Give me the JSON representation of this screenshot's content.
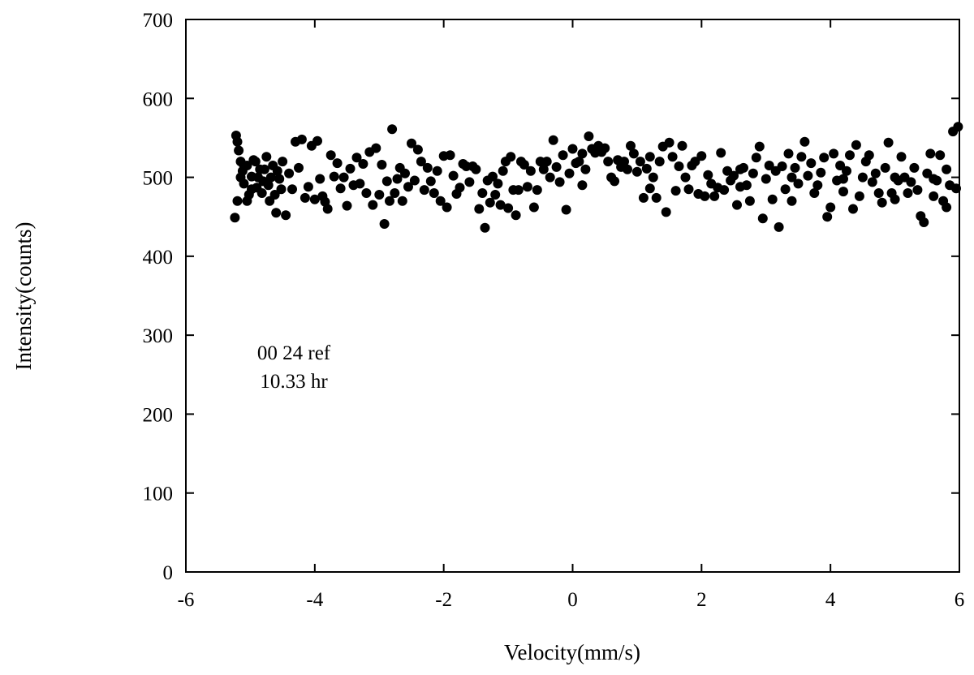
{
  "chart_data": {
    "type": "scatter",
    "title": "",
    "xlabel": "Velocity(mm/s)",
    "ylabel": "Intensity(counts)",
    "xlim": [
      -6,
      6
    ],
    "ylim": [
      0,
      700
    ],
    "x_ticks": [
      -6,
      -4,
      -2,
      0,
      2,
      4,
      6
    ],
    "y_ticks": [
      0,
      100,
      200,
      300,
      400,
      500,
      600,
      700
    ],
    "x_tick_labels": [
      "-6",
      "-4",
      "-2",
      "0",
      "2",
      "4",
      "6"
    ],
    "y_tick_labels": [
      "0",
      "100",
      "200",
      "300",
      "400",
      "500",
      "600",
      "700"
    ],
    "grid": false,
    "legend": "none",
    "marker_color": "#000000",
    "annotations": [
      "00 24 ref",
      "10.33 hr"
    ],
    "series": [
      {
        "values": [
          [
            -5.24,
            449
          ],
          [
            -5.22,
            553
          ],
          [
            -5.2,
            545
          ],
          [
            -5.18,
            534
          ],
          [
            -5.15,
            520
          ],
          [
            -5.12,
            508
          ],
          [
            -5.1,
            492
          ],
          [
            -5.05,
            515
          ],
          [
            -5.02,
            478
          ],
          [
            -4.98,
            501
          ],
          [
            -4.95,
            522
          ],
          [
            -4.9,
            487
          ],
          [
            -4.85,
            510
          ],
          [
            -4.8,
            495
          ],
          [
            -4.75,
            526
          ],
          [
            -4.7,
            470
          ],
          [
            -4.65,
            515
          ],
          [
            -4.6,
            455
          ],
          [
            -4.55,
            498
          ],
          [
            -4.5,
            520
          ],
          [
            -4.45,
            452
          ],
          [
            -4.4,
            505
          ],
          [
            -4.35,
            485
          ],
          [
            -4.3,
            545
          ],
          [
            -4.25,
            512
          ],
          [
            -4.2,
            548
          ],
          [
            -4.15,
            474
          ],
          [
            -4.1,
            488
          ],
          [
            -4.05,
            540
          ],
          [
            -4.0,
            472
          ],
          [
            -3.96,
            546
          ],
          [
            -3.92,
            498
          ],
          [
            -3.88,
            476
          ],
          [
            -3.84,
            469
          ],
          [
            -3.8,
            460
          ],
          [
            -3.75,
            528
          ],
          [
            -3.7,
            501
          ],
          [
            -3.65,
            518
          ],
          [
            -3.6,
            486
          ],
          [
            -3.55,
            500
          ],
          [
            -3.5,
            464
          ],
          [
            -3.45,
            511
          ],
          [
            -3.4,
            490
          ],
          [
            -3.35,
            525
          ],
          [
            -3.3,
            492
          ],
          [
            -3.25,
            517
          ],
          [
            -3.2,
            480
          ],
          [
            -3.15,
            532
          ],
          [
            -3.1,
            465
          ],
          [
            -3.05,
            537
          ],
          [
            -3.0,
            478
          ],
          [
            -2.96,
            516
          ],
          [
            -2.92,
            441
          ],
          [
            -2.88,
            495
          ],
          [
            -2.84,
            470
          ],
          [
            -2.8,
            561
          ],
          [
            -2.76,
            480
          ],
          [
            -2.72,
            498
          ],
          [
            -2.68,
            512
          ],
          [
            -2.64,
            470
          ],
          [
            -2.6,
            505
          ],
          [
            -2.55,
            488
          ],
          [
            -2.5,
            543
          ],
          [
            -2.45,
            496
          ],
          [
            -2.4,
            535
          ],
          [
            -2.35,
            520
          ],
          [
            -2.3,
            484
          ],
          [
            -2.25,
            512
          ],
          [
            -2.2,
            495
          ],
          [
            -2.15,
            480
          ],
          [
            -2.1,
            508
          ],
          [
            -2.05,
            470
          ],
          [
            -2.0,
            527
          ],
          [
            -1.95,
            462
          ],
          [
            -1.9,
            528
          ],
          [
            -1.85,
            502
          ],
          [
            -1.8,
            479
          ],
          [
            -1.75,
            487
          ],
          [
            -1.7,
            517
          ],
          [
            -1.65,
            514
          ],
          [
            -1.6,
            494
          ],
          [
            -1.55,
            514
          ],
          [
            -1.5,
            510
          ],
          [
            -1.45,
            460
          ],
          [
            -1.4,
            480
          ],
          [
            -1.36,
            436
          ],
          [
            -1.32,
            496
          ],
          [
            -1.28,
            468
          ],
          [
            -1.24,
            501
          ],
          [
            -1.2,
            478
          ],
          [
            -1.16,
            492
          ],
          [
            -1.12,
            465
          ],
          [
            -1.08,
            508
          ],
          [
            -1.04,
            520
          ],
          [
            -1.0,
            461
          ],
          [
            -0.96,
            526
          ],
          [
            -0.92,
            484
          ],
          [
            -0.88,
            452
          ],
          [
            -0.84,
            484
          ],
          [
            -0.8,
            520
          ],
          [
            -0.75,
            516
          ],
          [
            -0.7,
            488
          ],
          [
            -0.65,
            508
          ],
          [
            -0.6,
            462
          ],
          [
            -0.55,
            484
          ],
          [
            -0.5,
            520
          ],
          [
            -0.45,
            510
          ],
          [
            -0.4,
            520
          ],
          [
            -0.35,
            500
          ],
          [
            -0.3,
            547
          ],
          [
            -0.25,
            513
          ],
          [
            -0.2,
            494
          ],
          [
            -0.15,
            528
          ],
          [
            -0.1,
            459
          ],
          [
            -0.05,
            505
          ],
          [
            0.0,
            536
          ],
          [
            0.05,
            518
          ],
          [
            0.1,
            520
          ],
          [
            0.15,
            530
          ],
          [
            0.2,
            510
          ],
          [
            0.25,
            552
          ],
          [
            0.3,
            536
          ],
          [
            0.35,
            531
          ],
          [
            0.4,
            540
          ],
          [
            0.45,
            532
          ],
          [
            0.5,
            537
          ],
          [
            0.55,
            520
          ],
          [
            0.6,
            500
          ],
          [
            0.65,
            495
          ],
          [
            0.7,
            522
          ],
          [
            0.75,
            513
          ],
          [
            0.8,
            520
          ],
          [
            0.85,
            510
          ],
          [
            0.9,
            540
          ],
          [
            0.95,
            530
          ],
          [
            1.0,
            507
          ],
          [
            1.05,
            520
          ],
          [
            1.1,
            474
          ],
          [
            1.15,
            511
          ],
          [
            1.2,
            526
          ],
          [
            1.25,
            500
          ],
          [
            1.3,
            474
          ],
          [
            1.35,
            520
          ],
          [
            1.4,
            539
          ],
          [
            1.45,
            456
          ],
          [
            1.5,
            544
          ],
          [
            1.55,
            526
          ],
          [
            1.6,
            483
          ],
          [
            1.65,
            514
          ],
          [
            1.7,
            540
          ],
          [
            1.75,
            500
          ],
          [
            1.8,
            485
          ],
          [
            1.85,
            515
          ],
          [
            1.9,
            520
          ],
          [
            1.95,
            479
          ],
          [
            2.0,
            527
          ],
          [
            2.05,
            476
          ],
          [
            2.1,
            503
          ],
          [
            2.15,
            492
          ],
          [
            2.2,
            476
          ],
          [
            2.25,
            487
          ],
          [
            2.3,
            531
          ],
          [
            2.35,
            484
          ],
          [
            2.4,
            508
          ],
          [
            2.45,
            496
          ],
          [
            2.5,
            502
          ],
          [
            2.55,
            465
          ],
          [
            2.6,
            488
          ],
          [
            2.65,
            512
          ],
          [
            2.7,
            490
          ],
          [
            2.75,
            470
          ],
          [
            2.8,
            505
          ],
          [
            2.85,
            525
          ],
          [
            2.9,
            539
          ],
          [
            2.95,
            448
          ],
          [
            3.0,
            498
          ],
          [
            3.05,
            515
          ],
          [
            3.1,
            472
          ],
          [
            3.15,
            508
          ],
          [
            3.2,
            437
          ],
          [
            3.25,
            514
          ],
          [
            3.3,
            485
          ],
          [
            3.35,
            530
          ],
          [
            3.4,
            470
          ],
          [
            3.45,
            512
          ],
          [
            3.5,
            492
          ],
          [
            3.55,
            526
          ],
          [
            3.6,
            545
          ],
          [
            3.65,
            502
          ],
          [
            3.7,
            518
          ],
          [
            3.75,
            480
          ],
          [
            3.8,
            490
          ],
          [
            3.85,
            506
          ],
          [
            3.9,
            525
          ],
          [
            3.95,
            450
          ],
          [
            4.0,
            462
          ],
          [
            4.05,
            530
          ],
          [
            4.1,
            496
          ],
          [
            4.15,
            515
          ],
          [
            4.2,
            482
          ],
          [
            4.25,
            508
          ],
          [
            4.3,
            528
          ],
          [
            4.35,
            460
          ],
          [
            4.4,
            541
          ],
          [
            4.45,
            476
          ],
          [
            4.5,
            500
          ],
          [
            4.55,
            520
          ],
          [
            4.6,
            528
          ],
          [
            4.65,
            494
          ],
          [
            4.7,
            505
          ],
          [
            4.75,
            480
          ],
          [
            4.8,
            468
          ],
          [
            4.85,
            512
          ],
          [
            4.9,
            544
          ],
          [
            4.95,
            480
          ],
          [
            5.0,
            472
          ],
          [
            5.05,
            496
          ],
          [
            5.1,
            526
          ],
          [
            5.15,
            500
          ],
          [
            5.2,
            480
          ],
          [
            5.25,
            494
          ],
          [
            5.3,
            512
          ],
          [
            5.35,
            484
          ],
          [
            5.4,
            451
          ],
          [
            5.45,
            443
          ],
          [
            5.5,
            505
          ],
          [
            5.55,
            530
          ],
          [
            5.6,
            476
          ],
          [
            5.65,
            496
          ],
          [
            5.7,
            528
          ],
          [
            5.75,
            470
          ],
          [
            5.8,
            462
          ],
          [
            5.85,
            490
          ],
          [
            5.9,
            558
          ],
          [
            5.95,
            486
          ],
          [
            5.98,
            564
          ],
          [
            -5.2,
            470
          ],
          [
            -5.15,
            500
          ],
          [
            -5.1,
            515
          ],
          [
            -5.05,
            470
          ],
          [
            -4.98,
            485
          ],
          [
            -4.92,
            520
          ],
          [
            -4.88,
            500
          ],
          [
            -4.82,
            480
          ],
          [
            -4.78,
            510
          ],
          [
            -4.72,
            490
          ],
          [
            -4.68,
            500
          ],
          [
            -4.62,
            478
          ],
          [
            -4.58,
            508
          ],
          [
            -4.52,
            485
          ],
          [
            0.15,
            490
          ],
          [
            1.2,
            486
          ],
          [
            2.6,
            510
          ],
          [
            3.4,
            500
          ],
          [
            4.2,
            498
          ],
          [
            5.0,
            500
          ],
          [
            5.6,
            498
          ],
          [
            5.8,
            510
          ]
        ]
      }
    ]
  }
}
